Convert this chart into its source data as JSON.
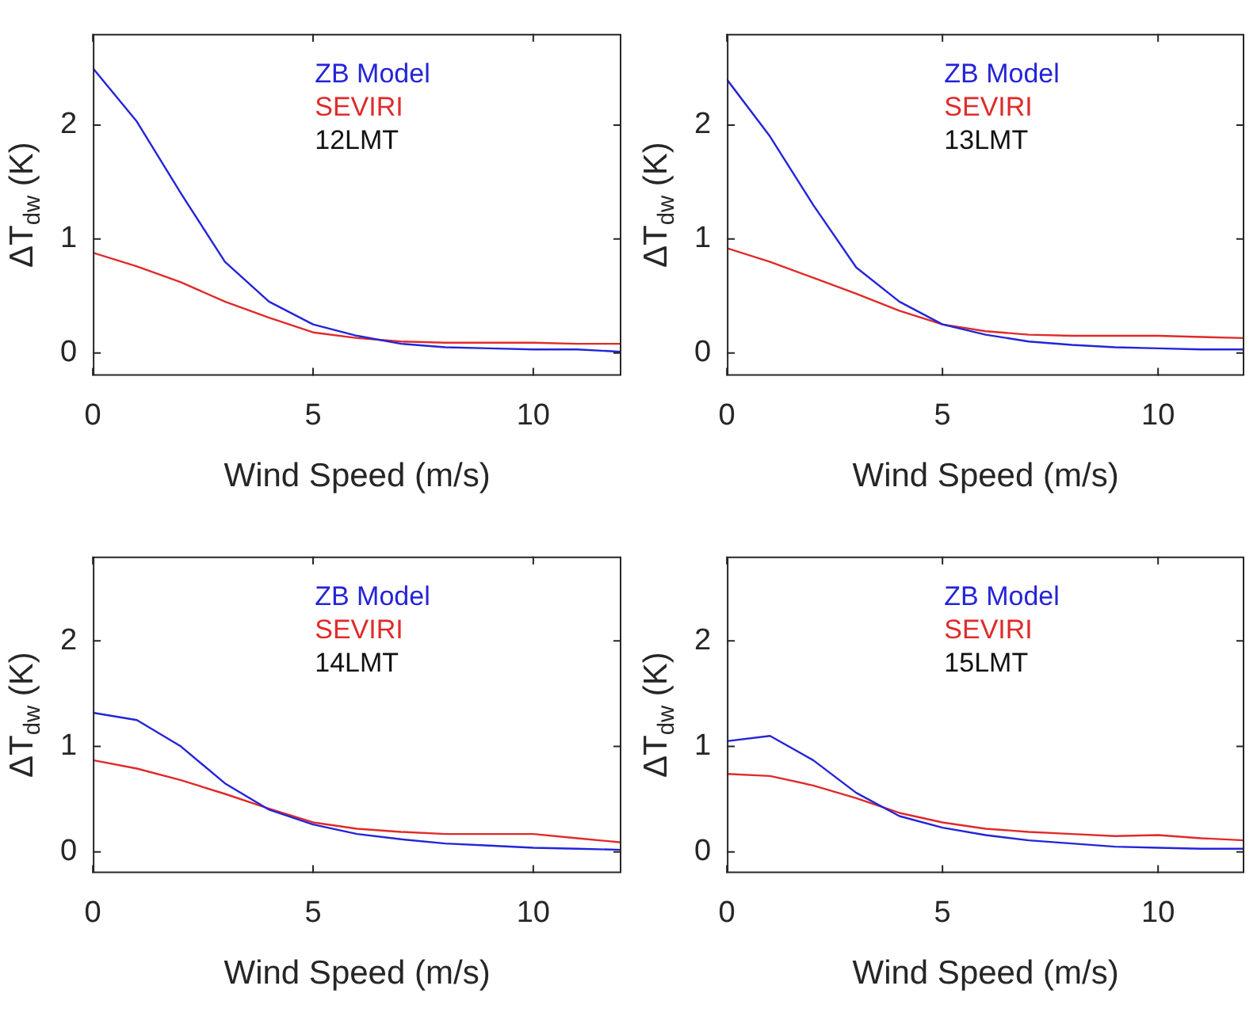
{
  "chart_data": [
    {
      "type": "line",
      "xlabel": "Wind Speed (m/s)",
      "ylabel": "ΔT$_{dw}$ (K)",
      "x": [
        0,
        1,
        2,
        3,
        4,
        5,
        6,
        7,
        8,
        9,
        10,
        11,
        12
      ],
      "xlim": [
        0,
        12
      ],
      "xticks": [
        0,
        5,
        10
      ],
      "ylim": [
        -0.2,
        2.8
      ],
      "yticks": [
        0,
        1,
        2
      ],
      "grid": false,
      "legend": "top",
      "marker": "none",
      "line_style": "solid",
      "annotations": [
        "12LMT"
      ],
      "series": [
        {
          "name": "ZB Model",
          "color": "#2424d8",
          "values": [
            2.5,
            2.03,
            1.4,
            0.8,
            0.45,
            0.25,
            0.15,
            0.08,
            0.05,
            0.04,
            0.03,
            0.03,
            0.01
          ]
        },
        {
          "name": "SEVIRI",
          "color": "#e02a2a",
          "values": [
            0.88,
            0.76,
            0.62,
            0.45,
            0.31,
            0.18,
            0.13,
            0.1,
            0.09,
            0.09,
            0.09,
            0.08,
            0.08
          ]
        }
      ]
    },
    {
      "type": "line",
      "xlabel": "Wind Speed (m/s)",
      "ylabel": "ΔT$_{dw}$ (K)",
      "x": [
        0,
        1,
        2,
        3,
        4,
        5,
        6,
        7,
        8,
        9,
        10,
        11,
        12
      ],
      "xlim": [
        0,
        12
      ],
      "xticks": [
        0,
        5,
        10
      ],
      "ylim": [
        -0.2,
        2.8
      ],
      "yticks": [
        0,
        1,
        2
      ],
      "grid": false,
      "legend": "top",
      "marker": "none",
      "line_style": "solid",
      "annotations": [
        "13LMT"
      ],
      "series": [
        {
          "name": "ZB Model",
          "color": "#2424d8",
          "values": [
            2.4,
            1.9,
            1.3,
            0.75,
            0.45,
            0.25,
            0.16,
            0.1,
            0.07,
            0.05,
            0.04,
            0.03,
            0.03
          ]
        },
        {
          "name": "SEVIRI",
          "color": "#e02a2a",
          "values": [
            0.92,
            0.8,
            0.66,
            0.52,
            0.37,
            0.25,
            0.19,
            0.16,
            0.15,
            0.15,
            0.15,
            0.14,
            0.13
          ]
        }
      ]
    },
    {
      "type": "line",
      "xlabel": "Wind Speed (m/s)",
      "ylabel": "ΔT$_{dw}$ (K)",
      "x": [
        0,
        1,
        2,
        3,
        4,
        5,
        6,
        7,
        8,
        9,
        10,
        11,
        12
      ],
      "xlim": [
        0,
        12
      ],
      "xticks": [
        0,
        5,
        10
      ],
      "ylim": [
        -0.2,
        2.8
      ],
      "yticks": [
        0,
        1,
        2
      ],
      "grid": false,
      "legend": "top",
      "marker": "none",
      "line_style": "solid",
      "annotations": [
        "14LMT"
      ],
      "series": [
        {
          "name": "ZB Model",
          "color": "#2424d8",
          "values": [
            1.32,
            1.25,
            1.0,
            0.65,
            0.4,
            0.26,
            0.17,
            0.12,
            0.08,
            0.06,
            0.04,
            0.03,
            0.02
          ]
        },
        {
          "name": "SEVIRI",
          "color": "#e02a2a",
          "values": [
            0.87,
            0.79,
            0.68,
            0.55,
            0.41,
            0.28,
            0.22,
            0.19,
            0.17,
            0.17,
            0.17,
            0.13,
            0.09
          ]
        }
      ]
    },
    {
      "type": "line",
      "xlabel": "Wind Speed (m/s)",
      "ylabel": "ΔT$_{dw}$ (K)",
      "x": [
        0,
        1,
        2,
        3,
        4,
        5,
        6,
        7,
        8,
        9,
        10,
        11,
        12
      ],
      "xlim": [
        0,
        12
      ],
      "xticks": [
        0,
        5,
        10
      ],
      "ylim": [
        -0.2,
        2.8
      ],
      "yticks": [
        0,
        1,
        2
      ],
      "grid": false,
      "legend": "top",
      "marker": "none",
      "line_style": "solid",
      "annotations": [
        "15LMT"
      ],
      "series": [
        {
          "name": "ZB Model",
          "color": "#2424d8",
          "values": [
            1.05,
            1.1,
            0.87,
            0.56,
            0.34,
            0.23,
            0.16,
            0.11,
            0.08,
            0.05,
            0.04,
            0.03,
            0.03
          ]
        },
        {
          "name": "SEVIRI",
          "color": "#e02a2a",
          "values": [
            0.74,
            0.72,
            0.63,
            0.51,
            0.37,
            0.28,
            0.22,
            0.19,
            0.17,
            0.15,
            0.16,
            0.13,
            0.11
          ]
        }
      ]
    }
  ]
}
